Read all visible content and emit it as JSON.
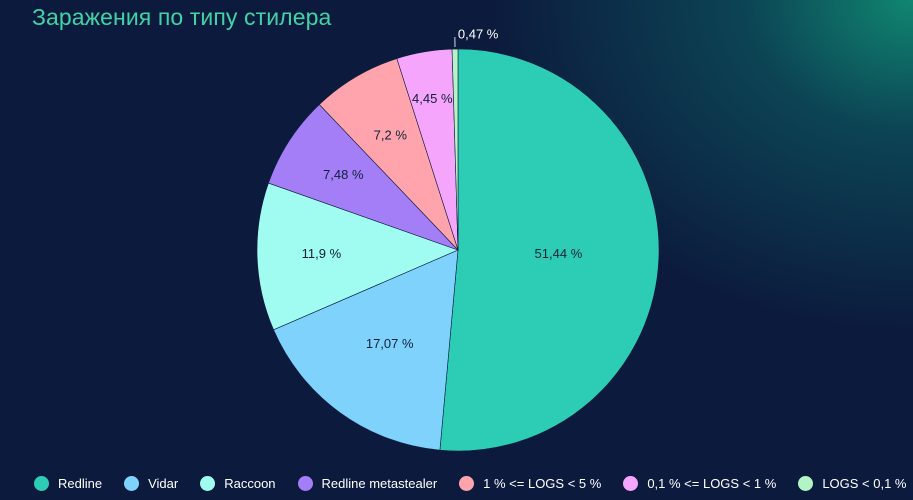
{
  "title": "Заражения по типу стилера",
  "chart_data": {
    "type": "pie",
    "title": "Заражения по типу стилера",
    "start_angle_deg": 0,
    "direction": "clockwise",
    "legend_position": "bottom",
    "slices": [
      {
        "name": "Redline",
        "value": 51.44,
        "label": "51,44 %",
        "color": "#2dcdb5"
      },
      {
        "name": "Vidar",
        "value": 17.07,
        "label": "17,07 %",
        "color": "#7fd2fc"
      },
      {
        "name": "Raccoon",
        "value": 11.9,
        "label": "11,9 %",
        "color": "#a0fbf1"
      },
      {
        "name": "Redline metastealer",
        "value": 7.48,
        "label": "7,48 %",
        "color": "#a47ef7"
      },
      {
        "name": "1 % <= LOGS < 5 %",
        "value": 7.2,
        "label": "7,2 %",
        "color": "#ffa4ac"
      },
      {
        "name": "0,1 % <= LOGS < 1 %",
        "value": 4.45,
        "label": "4,45 %",
        "color": "#f5a5fb"
      },
      {
        "name": "LOGS < 0,1 %",
        "value": 0.47,
        "label": "0,47 %",
        "color": "#b3f4c4"
      }
    ]
  }
}
